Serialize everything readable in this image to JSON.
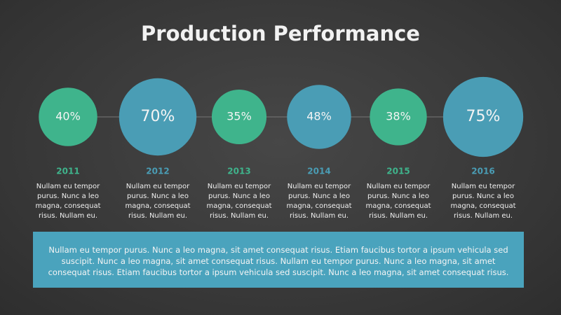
{
  "chart_data": {
    "type": "bubble",
    "title": "Production Performance",
    "categories": [
      "2011",
      "2012",
      "2013",
      "2014",
      "2015",
      "2016"
    ],
    "values": [
      40,
      70,
      35,
      48,
      38,
      75
    ],
    "value_labels": [
      "40%",
      "70%",
      "35%",
      "48%",
      "38%",
      "75%"
    ],
    "colors": [
      "#3fb48c",
      "#4a9db5",
      "#3fb48c",
      "#4a9db5",
      "#3fb48c",
      "#4a9db5"
    ],
    "descriptions": [
      "Nullam eu tempor purus. Nunc a leo magna, consequat risus. Nullam eu.",
      "Nullam eu tempor purus. Nunc a leo magna, consequat risus. Nullam eu.",
      "Nullam eu tempor purus. Nunc a leo magna, consequat risus. Nullam eu.",
      "Nullam eu tempor purus. Nunc a leo magna, consequat risus. Nullam eu.",
      "Nullam eu tempor purus. Nunc a leo magna, consequat risus. Nullam eu.",
      "Nullam eu tempor purus. Nunc a leo magna, consequat risus. Nullam eu."
    ],
    "note": "Nullam eu tempor purus. Nunc a leo magna, sit amet consequat risus. Etiam faucibus tortor a ipsum vehicula sed suscipit. Nunc a leo magna, sit amet consequat risus. Nullam eu tempor purus. Nunc a leo magna, sit amet consequat risus. Etiam faucibus tortor a ipsum vehicula sed suscipit. Nunc a leo magna, sit amet consequat risus."
  }
}
